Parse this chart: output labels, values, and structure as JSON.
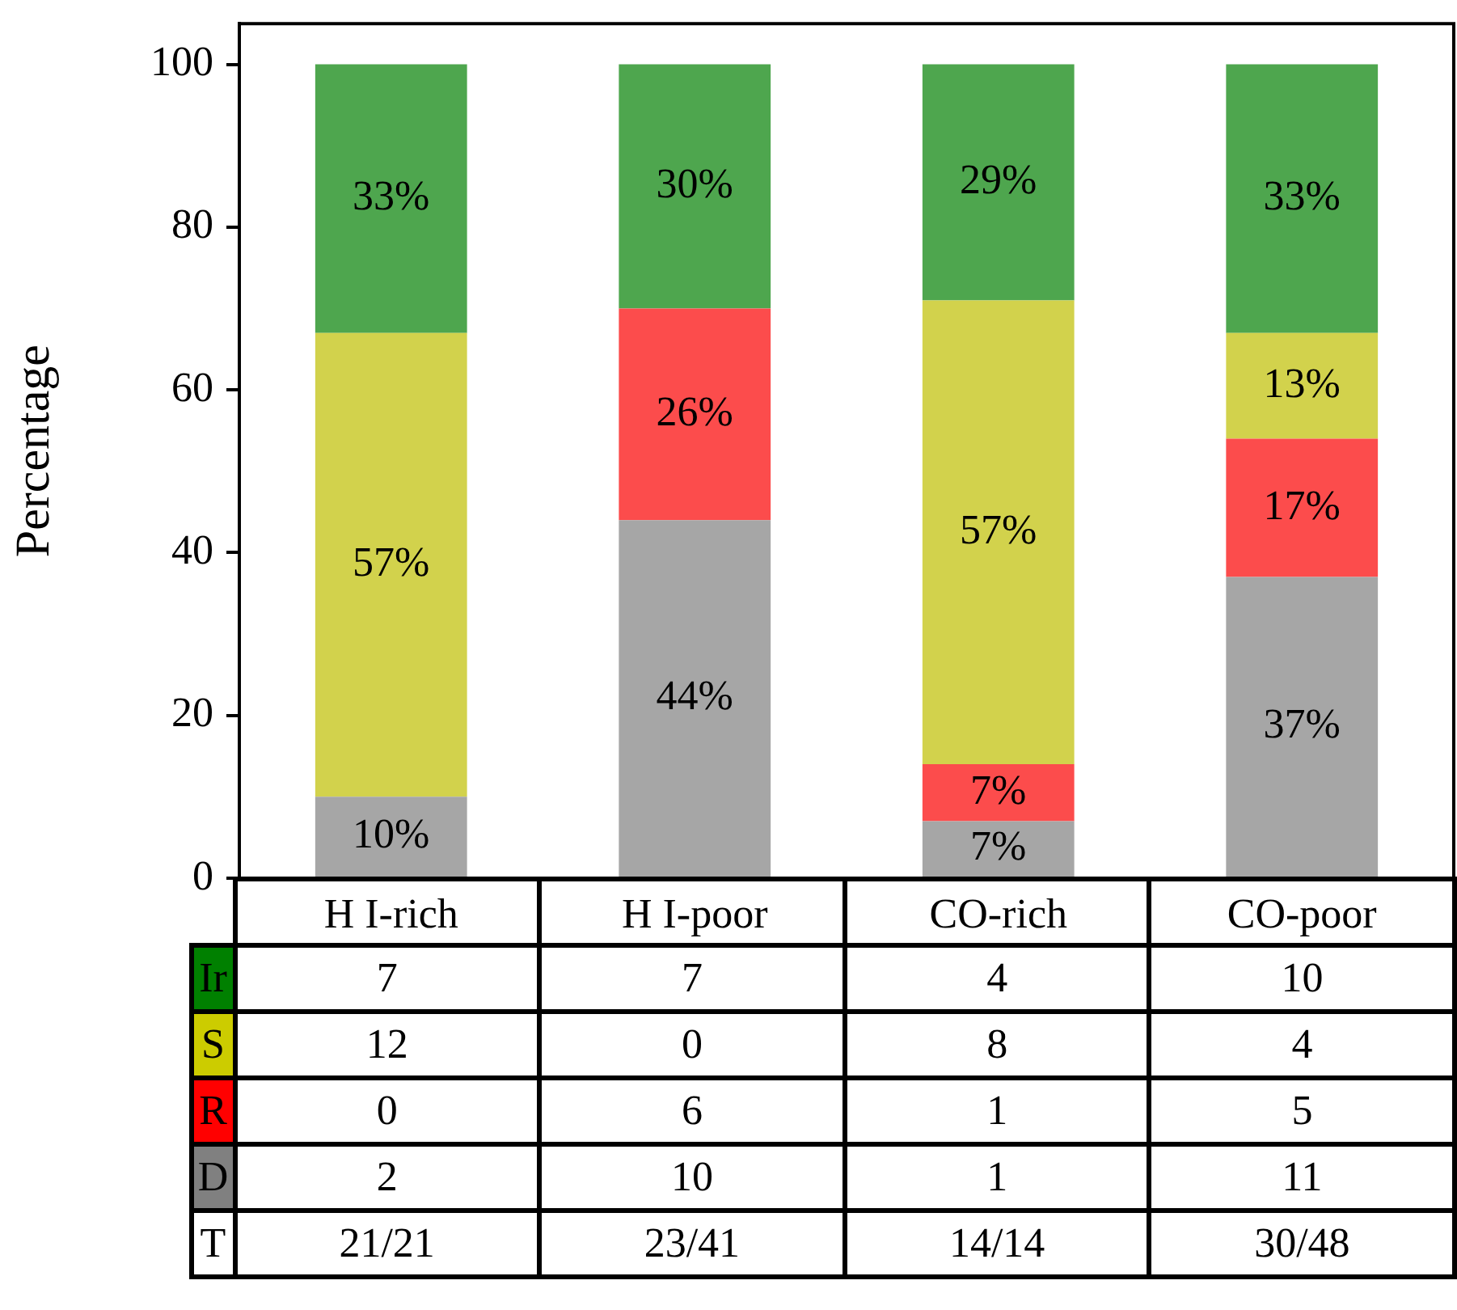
{
  "chart_data": [
    {
      "type": "bar",
      "ylabel": "Percentage",
      "categories": [
        "H I-rich",
        "H I-poor",
        "CO-rich",
        "CO-poor"
      ],
      "stacked": true,
      "ylim": [
        0,
        105
      ],
      "yticks": [
        0,
        20,
        40,
        60,
        80,
        100
      ],
      "series": [
        {
          "color": "#a6a6a6",
          "values": [
            10,
            44,
            7,
            37
          ],
          "value_labels": [
            "10%",
            "44%",
            "7%",
            "37%"
          ]
        },
        {
          "color": "#fc4c4c",
          "values": [
            null,
            26,
            7,
            17
          ],
          "value_labels": [
            null,
            "26%",
            "7%",
            "17%"
          ]
        },
        {
          "color": "#d2d24c",
          "values": [
            57,
            null,
            57,
            13
          ],
          "value_labels": [
            "57%",
            null,
            "57%",
            "13%"
          ]
        },
        {
          "color": "#4ea64e",
          "values": [
            33,
            30,
            29,
            33
          ],
          "value_labels": [
            "33%",
            "30%",
            "29%",
            "33%"
          ]
        }
      ]
    },
    {
      "type": "other",
      "y_categories": [
        "Ir",
        "S",
        "R",
        "D",
        "T"
      ],
      "colors": [
        "#008000",
        "#cccc00",
        "#ff0000",
        "#808080",
        null
      ],
      "cell_labels": [
        [
          "7",
          "7",
          "4",
          "10"
        ],
        [
          "12",
          "0",
          "8",
          "4"
        ],
        [
          "0",
          "6",
          "1",
          "5"
        ],
        [
          "2",
          "10",
          "1",
          "11"
        ],
        [
          "21/21",
          "23/41",
          "14/14",
          "30/48"
        ]
      ]
    }
  ]
}
